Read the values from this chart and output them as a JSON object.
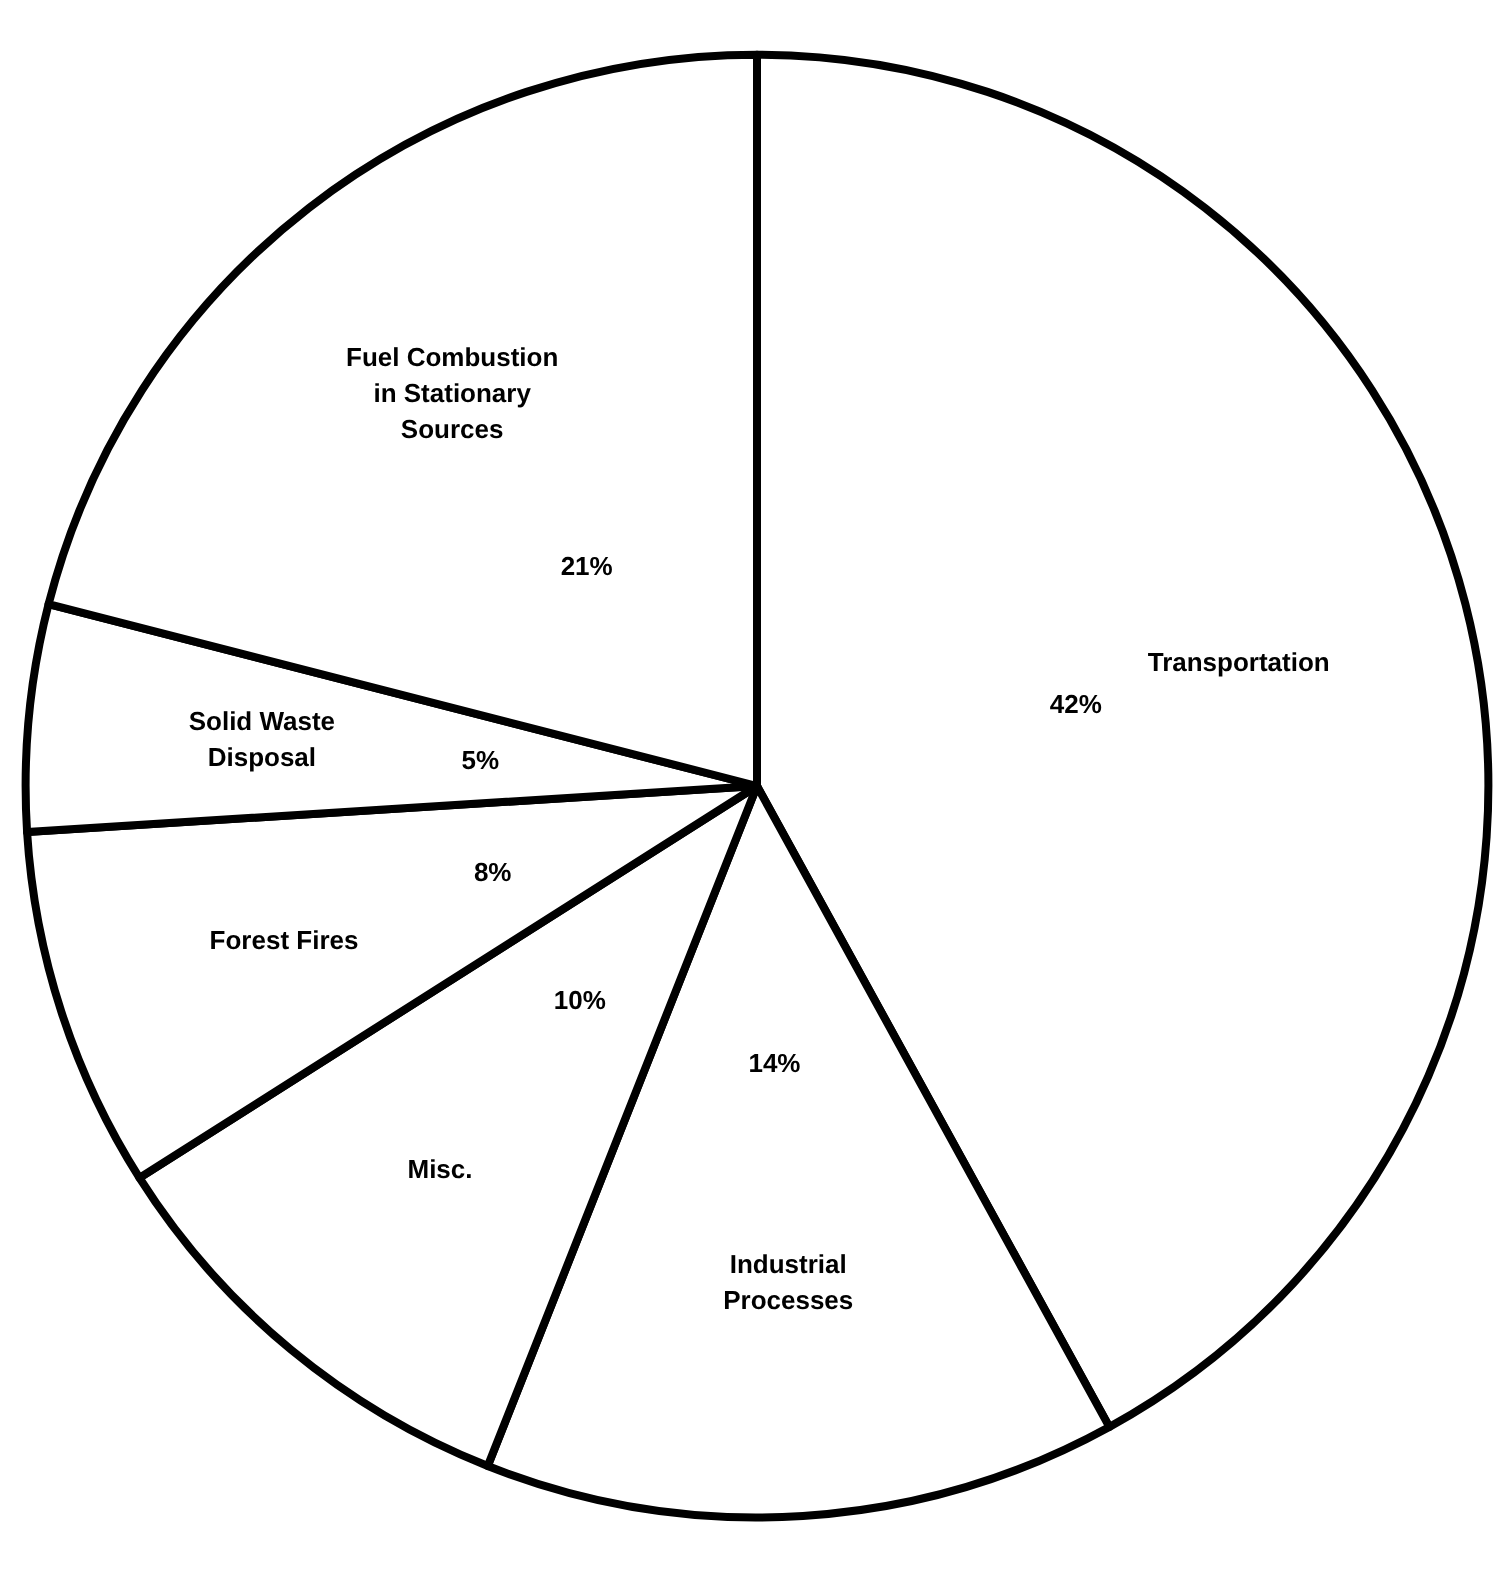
{
  "chart_data": {
    "type": "pie",
    "categories": [
      "Transportation",
      "Industrial Processes",
      "Misc.",
      "Forest Fires",
      "Solid Waste Disposal",
      "Fuel Combustion in Stationary Sources"
    ],
    "values": [
      42,
      14,
      10,
      8,
      5,
      21
    ],
    "colors": [
      "#ffffff",
      "#ffffff",
      "#ffffff",
      "#ffffff",
      "#ffffff",
      "#ffffff"
    ],
    "value_labels": [
      "42%",
      "14%",
      "10%",
      "8%",
      "5%",
      "21%"
    ]
  }
}
